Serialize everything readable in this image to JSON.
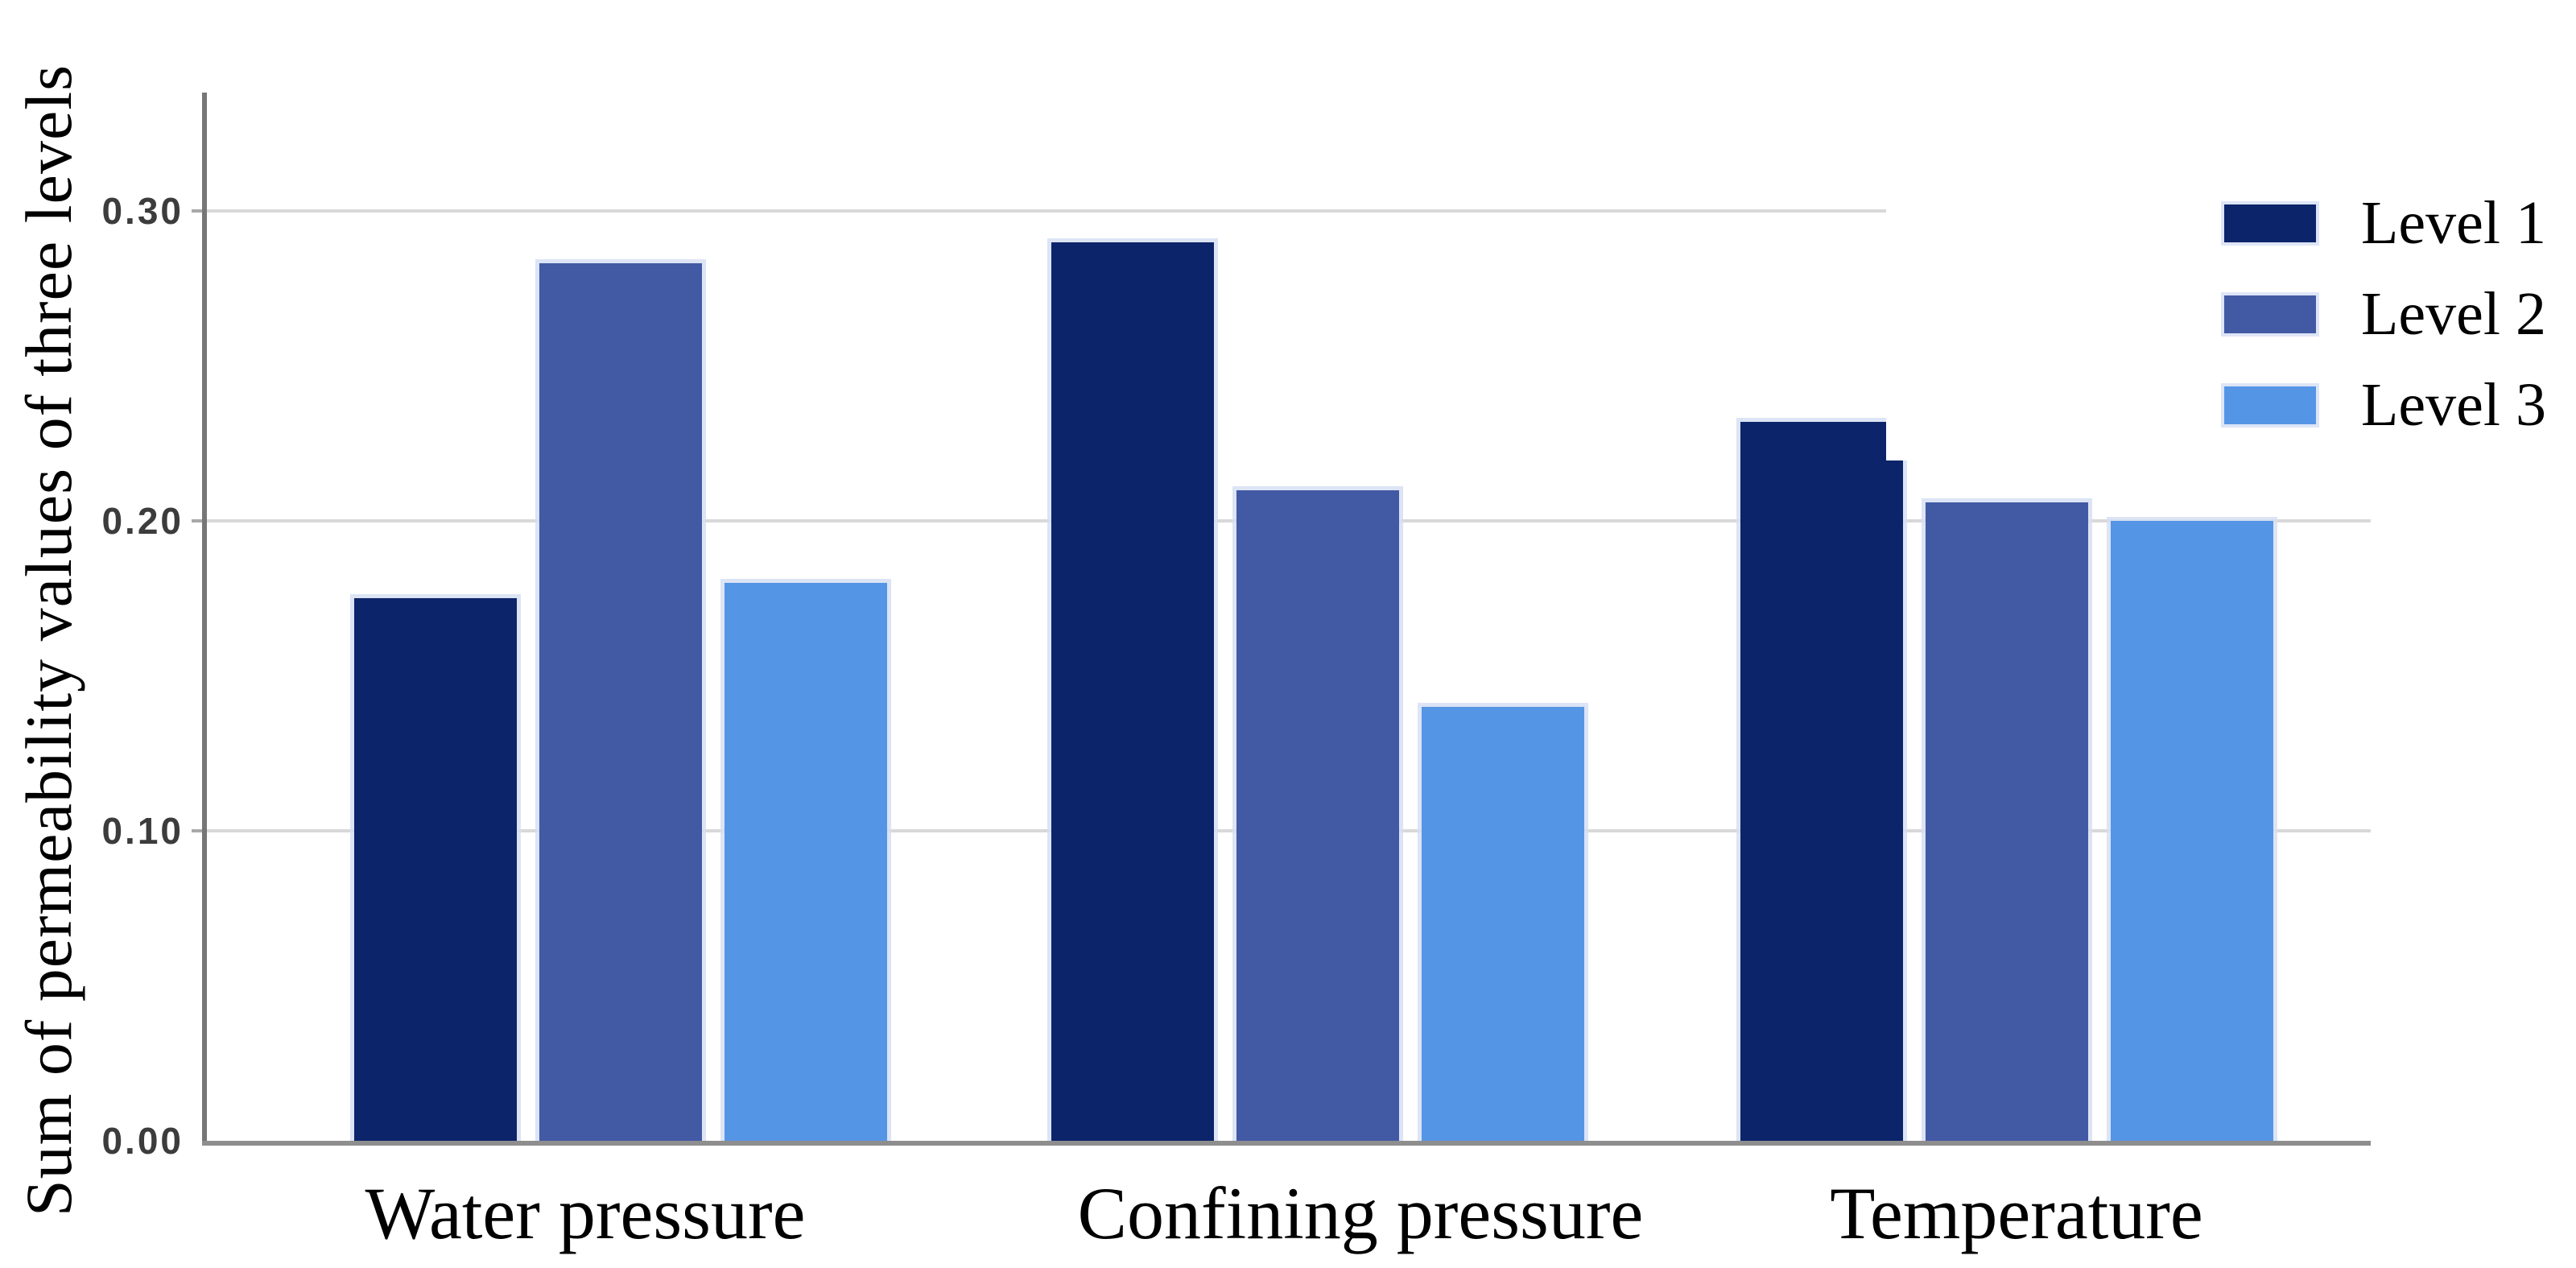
{
  "chart_data": {
    "type": "bar",
    "title": "",
    "xlabel": "",
    "ylabel": "Sum of permeability values of three levels",
    "categories": [
      "Water pressure",
      "Confining pressure",
      "Temperature"
    ],
    "series": [
      {
        "name": "Level 1",
        "color": "#0c2469",
        "values": [
          0.175,
          0.29,
          0.232
        ]
      },
      {
        "name": "Level 2",
        "color": "#4259a4",
        "values": [
          0.283,
          0.21,
          0.206
        ]
      },
      {
        "name": "Level 3",
        "color": "#5595e6",
        "values": [
          0.18,
          0.14,
          0.2
        ]
      }
    ],
    "yticks": [
      {
        "label": "0.00",
        "value": 0.0
      },
      {
        "label": "0.10",
        "value": 0.1
      },
      {
        "label": "0.20",
        "value": 0.2
      },
      {
        "label": "0.30",
        "value": 0.3
      }
    ],
    "ylim": [
      0,
      0.34
    ],
    "grid": "horizontal",
    "legend_position": "top-right",
    "colors": {
      "gridline": "#d8d8d8",
      "y_axis": "#767676",
      "x_axis": "#8e8e8e",
      "tick_label": "#3c3c3c",
      "text": "#000000",
      "background": "#ffffff",
      "bar_halo": "#d6dff3"
    }
  }
}
